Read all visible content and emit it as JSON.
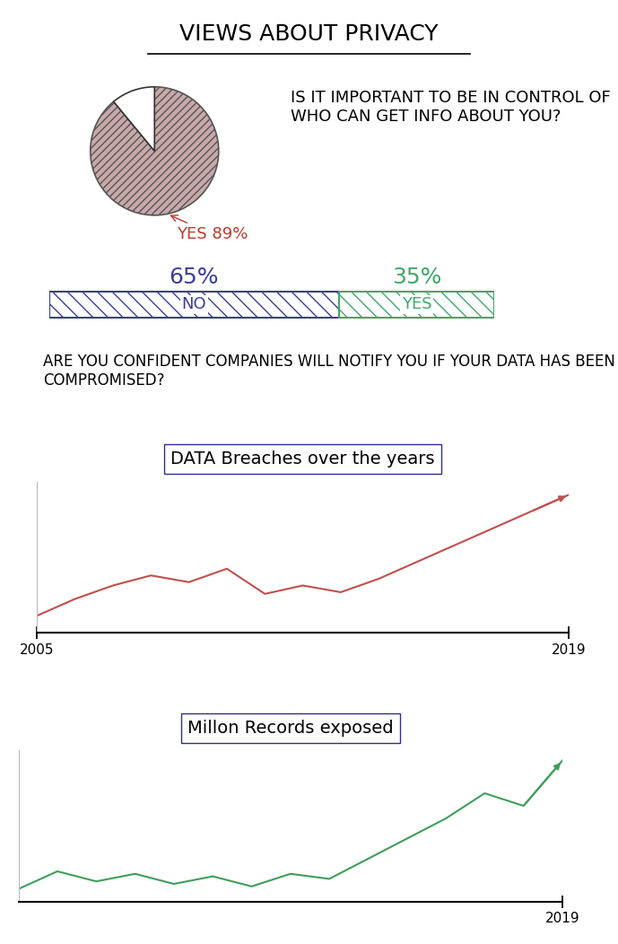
{
  "title": "VIEWS ABOUT PRIVACY",
  "chart_data": [
    {
      "type": "pie",
      "title": "IS IT IMPORTANT TO BE IN CONTROL OF WHO CAN GET INFO ABOUT YOU?",
      "categories": [
        "YES",
        null
      ],
      "values": [
        89,
        11
      ],
      "value_labels": [
        "89%",
        null
      ],
      "colors": [
        "#c9a9a9",
        "#ffffff"
      ],
      "data_labels": true
    },
    {
      "type": "bar",
      "title": "ARE YOU CONFIDENT COMPANIES WILL NOTIFY YOU IF YOUR DATA HAS BEEN COMPROMISED?",
      "orientation": "horizontal",
      "stacked": true,
      "categories": [
        null
      ],
      "series": [
        {
          "name": "NO",
          "color": "#3a3d9c",
          "values": [
            65
          ],
          "value_labels": [
            "65%"
          ]
        },
        {
          "name": "YES",
          "color": "#3fa96b",
          "values": [
            35
          ],
          "value_labels": [
            "35%"
          ]
        }
      ],
      "xlim": [
        0,
        100
      ],
      "data_labels": true,
      "tick_labels": false
    },
    {
      "type": "line",
      "title": "DATA Breaches over the years",
      "x": [
        2005,
        2006,
        2007,
        2008,
        2009,
        2010,
        2011,
        2012,
        2013,
        2014,
        2015,
        2016,
        2017,
        2018,
        2019
      ],
      "values": [
        100,
        200,
        280,
        340,
        300,
        380,
        230,
        280,
        240,
        320,
        420,
        520,
        620,
        720,
        820
      ],
      "color": "#c0504d",
      "xlim": [
        2005,
        2019
      ],
      "xticks": [
        2005,
        2019
      ],
      "ylim": [
        0,
        900
      ],
      "tick_labels": "x"
    },
    {
      "type": "line",
      "title": "Millon Records exposed",
      "x": [
        2005,
        2006,
        2007,
        2008,
        2009,
        2010,
        2011,
        2012,
        2013,
        2014,
        2015,
        2016,
        2017,
        2018,
        2019
      ],
      "values": [
        50,
        120,
        80,
        110,
        70,
        100,
        60,
        110,
        90,
        170,
        250,
        330,
        430,
        380,
        560
      ],
      "color": "#3f9e5a",
      "xlim": [
        2005,
        2019
      ],
      "xticks": [
        2019
      ],
      "ylim": [
        0,
        600
      ],
      "tick_labels": "x"
    }
  ]
}
